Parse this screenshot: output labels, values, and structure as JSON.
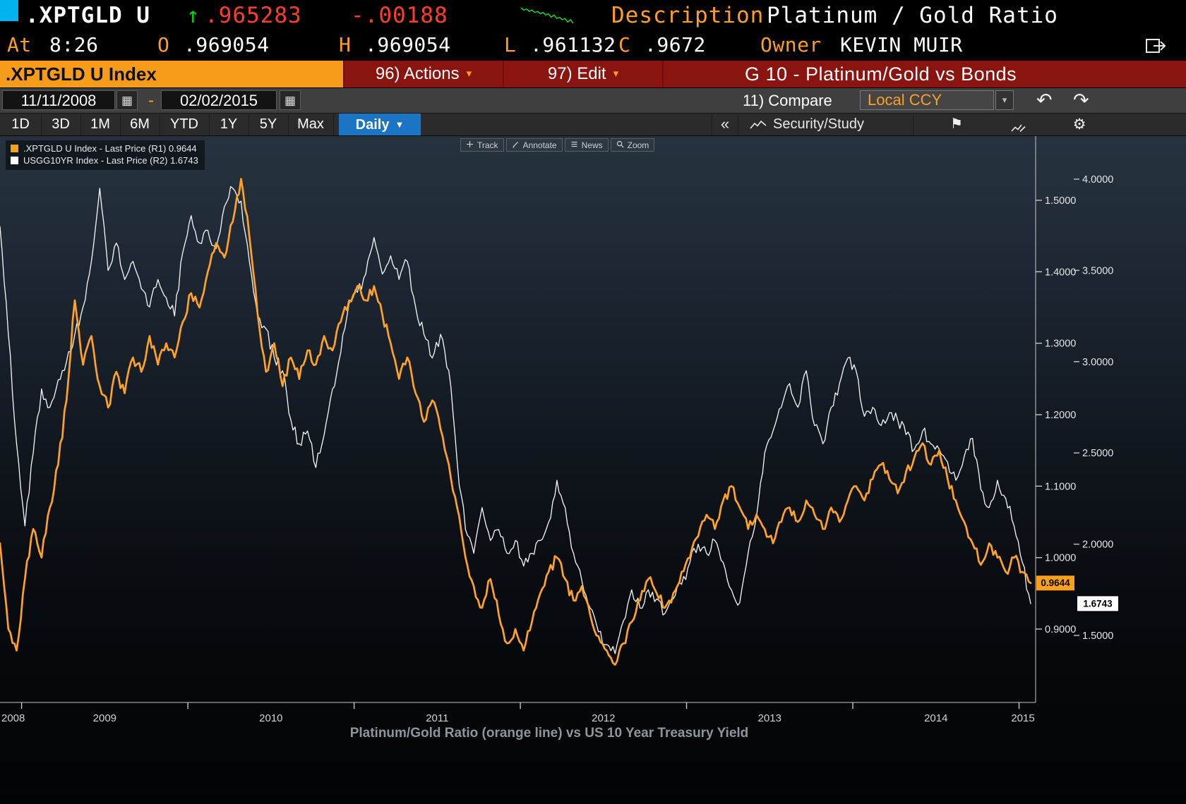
{
  "header": {
    "ticker": ".XPTGLD U",
    "last_price": ".965283",
    "change": "-.00188",
    "description_label": "Description",
    "description_value": "Platinum / Gold Ratio",
    "at_label": "At",
    "time": "8:26",
    "open_label": "O",
    "open_value": ".969054",
    "high_label": "H",
    "high_value": ".969054",
    "low_label": "L",
    "low_value": ".961132",
    "close_label": "C",
    "close_value": ".9672",
    "owner_label": "Owner",
    "owner_value": "KEVIN MUIR",
    "sparkline_values": [
      9,
      8,
      8.5,
      7.5,
      8,
      7,
      7.5,
      6.5,
      7,
      6,
      6.5,
      5,
      6,
      4.5,
      5,
      4,
      4.5,
      3,
      4,
      2.5
    ]
  },
  "titlebar": {
    "security_title": ".XPTGLD U Index",
    "actions_label": "96) Actions",
    "edit_label": "97) Edit",
    "chart_title": "G 10 - Platinum/Gold vs Bonds"
  },
  "controls": {
    "date_from": "11/11/2008",
    "date_separator": "-",
    "date_to": "02/02/2015",
    "compare_label": "11) Compare",
    "currency_mode": "Local CCY"
  },
  "toolbar": {
    "periods": [
      "1D",
      "3D",
      "1M",
      "6M",
      "YTD",
      "1Y",
      "5Y",
      "Max"
    ],
    "frequency": "Daily",
    "security_study_label": "Security/Study"
  },
  "icons": {
    "up_arrow": "↑",
    "calendar": "▦",
    "dropdown_caret": "▾",
    "freq_caret": "▼",
    "collapse": "«",
    "flag": "⚑",
    "gear": "⚙",
    "undo": "↶",
    "redo": "↷"
  },
  "chart_tools": {
    "items": [
      {
        "icon": "track-icon",
        "label": "Track"
      },
      {
        "icon": "annotate-icon",
        "label": "Annotate"
      },
      {
        "icon": "news-icon",
        "label": "News"
      },
      {
        "icon": "zoom-icon",
        "label": "Zoom"
      }
    ]
  },
  "legend": {
    "items": [
      {
        "color": "#f8a01c",
        "label": ".XPTGLD U Index - Last Price (R1) 0.9644"
      },
      {
        "color": "#ffffff",
        "label": "USGG10YR Index - Last Price (R2) 1.6743"
      }
    ]
  },
  "chart_data": {
    "type": "line",
    "title": "G 10 - Platinum/Gold vs Bonds",
    "caption": "Platinum/Gold Ratio (orange line) vs US 10 Year Treasury Yield",
    "x_start": 2008.87,
    "x_step": 0.05,
    "x_end": 2015.07,
    "year_labels": [
      2008,
      2009,
      2010,
      2011,
      2012,
      2013,
      2014,
      2015
    ],
    "right_axis_r1": {
      "name": "R1",
      "ticks": [
        1.5,
        1.4,
        1.3,
        1.2,
        1.1,
        1.0,
        0.9
      ],
      "last_value": "0.9644",
      "color": "#f8a01c"
    },
    "right_axis_r2": {
      "name": "R2",
      "ticks": [
        4.0,
        3.5,
        3.0,
        2.5,
        2.0,
        1.5
      ],
      "last_value": "1.6743",
      "color": "#ffffff"
    },
    "series": [
      {
        "name": ".XPTGLD U Index - Last Price",
        "axis": "R1",
        "color": "#ffa226",
        "values": [
          1.02,
          0.9,
          0.87,
          0.97,
          1.04,
          1.0,
          1.07,
          1.13,
          1.22,
          1.36,
          1.27,
          1.31,
          1.24,
          1.21,
          1.26,
          1.23,
          1.28,
          1.26,
          1.31,
          1.27,
          1.3,
          1.28,
          1.33,
          1.37,
          1.35,
          1.4,
          1.44,
          1.42,
          1.47,
          1.53,
          1.45,
          1.34,
          1.26,
          1.3,
          1.24,
          1.28,
          1.25,
          1.29,
          1.27,
          1.31,
          1.29,
          1.33,
          1.36,
          1.38,
          1.36,
          1.38,
          1.34,
          1.3,
          1.25,
          1.28,
          1.23,
          1.19,
          1.22,
          1.18,
          1.13,
          1.07,
          1.0,
          0.96,
          0.93,
          0.97,
          0.92,
          0.88,
          0.9,
          0.87,
          0.91,
          0.95,
          0.98,
          1.0,
          0.97,
          0.94,
          0.96,
          0.92,
          0.89,
          0.87,
          0.85,
          0.88,
          0.91,
          0.94,
          0.97,
          0.95,
          0.93,
          0.95,
          0.98,
          1.0,
          1.03,
          1.06,
          1.04,
          1.08,
          1.1,
          1.07,
          1.04,
          1.06,
          1.04,
          1.02,
          1.05,
          1.07,
          1.05,
          1.08,
          1.06,
          1.04,
          1.07,
          1.05,
          1.08,
          1.1,
          1.08,
          1.11,
          1.13,
          1.11,
          1.09,
          1.12,
          1.14,
          1.16,
          1.13,
          1.15,
          1.11,
          1.08,
          1.05,
          1.02,
          0.99,
          1.02,
          1.0,
          0.98,
          1.0,
          0.98,
          0.9644
        ]
      },
      {
        "name": "USGG10YR Index - Last Price",
        "axis": "R2",
        "color": "#f2f2f2",
        "values": [
          3.74,
          3.15,
          2.55,
          2.1,
          2.5,
          2.85,
          2.75,
          2.9,
          3.0,
          3.15,
          3.3,
          3.55,
          3.95,
          3.5,
          3.65,
          3.45,
          3.55,
          3.4,
          3.3,
          3.45,
          3.35,
          3.25,
          3.6,
          3.8,
          3.65,
          3.72,
          3.62,
          3.85,
          3.95,
          3.88,
          3.55,
          3.25,
          3.18,
          3.02,
          2.95,
          2.68,
          2.55,
          2.62,
          2.42,
          2.6,
          2.85,
          3.05,
          3.32,
          3.38,
          3.48,
          3.68,
          3.48,
          3.58,
          3.45,
          3.55,
          3.3,
          3.15,
          3.02,
          3.15,
          2.95,
          2.45,
          2.08,
          1.95,
          2.2,
          2.02,
          2.08,
          1.95,
          2.02,
          1.88,
          1.95,
          2.02,
          2.12,
          2.35,
          2.2,
          1.95,
          1.8,
          1.65,
          1.52,
          1.45,
          1.4,
          1.58,
          1.75,
          1.65,
          1.75,
          1.7,
          1.62,
          1.7,
          1.78,
          1.9,
          2.0,
          1.95,
          2.02,
          1.9,
          1.75,
          1.68,
          1.95,
          2.15,
          2.5,
          2.62,
          2.75,
          2.88,
          2.75,
          2.95,
          2.65,
          2.55,
          2.75,
          2.88,
          3.02,
          2.95,
          2.7,
          2.75,
          2.65,
          2.72,
          2.68,
          2.6,
          2.52,
          2.62,
          2.55,
          2.52,
          2.45,
          2.35,
          2.48,
          2.58,
          2.3,
          2.2,
          2.35,
          2.25,
          2.1,
          1.9,
          1.6743
        ]
      }
    ]
  }
}
